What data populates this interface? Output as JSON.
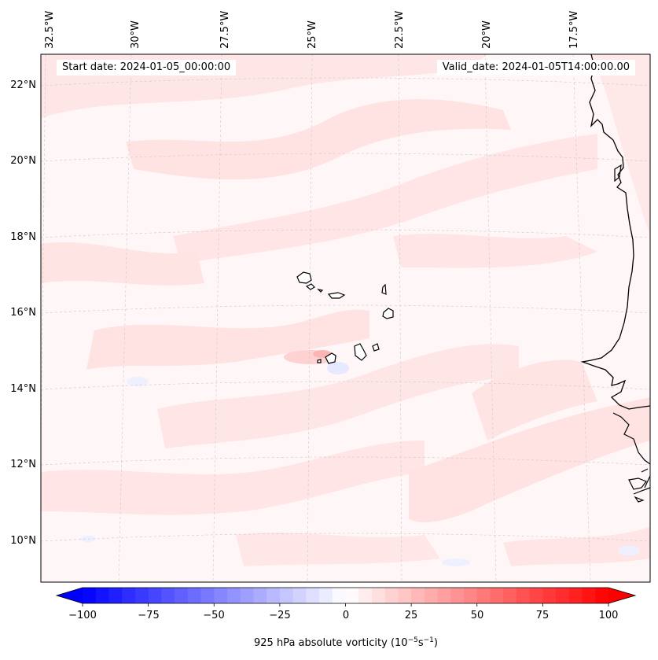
{
  "map": {
    "lon_labels": [
      "32.5°W",
      "30°W",
      "27.5°W",
      "25°W",
      "22.5°W",
      "20°W",
      "17.5°W"
    ],
    "lat_labels": [
      "22°N",
      "20°N",
      "18°N",
      "16°N",
      "14°N",
      "12°N",
      "10°N"
    ],
    "field_colors": {
      "light_red": "#ffe2e2",
      "faint_red": "#fff7f7",
      "light_blue": "#eef0ff",
      "coast": "#000000"
    }
  },
  "header": {
    "start_date": "Start date: 2024-01-05_00:00:00",
    "valid_date": "Valid_date: 2024-01-05T14:00:00.00"
  },
  "colorbar": {
    "ticks": [
      "−100",
      "−75",
      "−50",
      "−25",
      "0",
      "25",
      "50",
      "75",
      "100"
    ],
    "label_main": "925 hPa absolute vorticity (10",
    "label_exp1": "−5",
    "label_mid": "s",
    "label_exp2": "−1",
    "label_end": ")",
    "vmin": -100,
    "vmax": 100,
    "levels": 40
  }
}
